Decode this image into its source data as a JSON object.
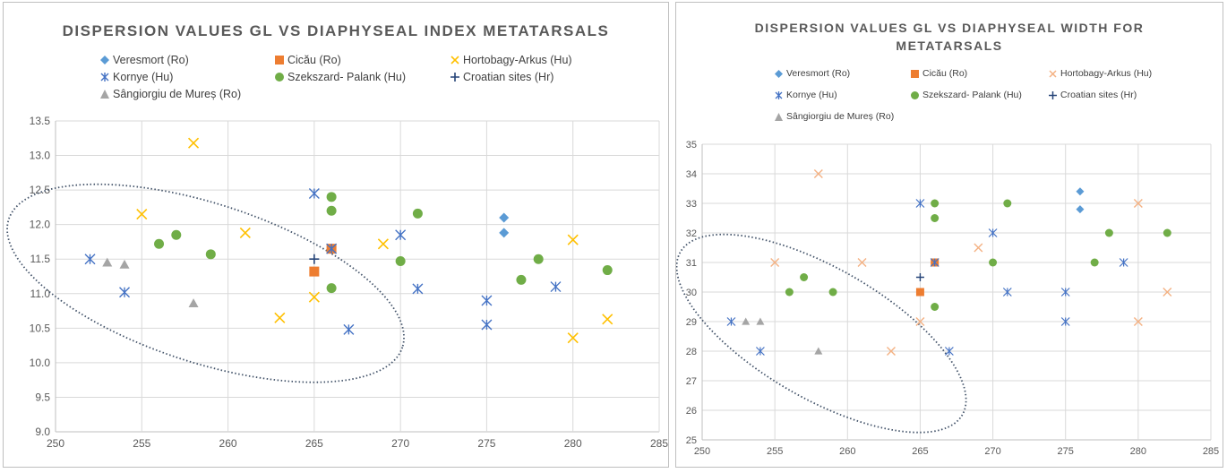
{
  "chart_data": [
    {
      "type": "scatter",
      "title": "DISPERSION VALUES GL VS DIAPHYSEAL INDEX METATARSALS",
      "xlim": [
        250,
        285
      ],
      "ylim": [
        9.0,
        13.5
      ],
      "xticks": [
        "250",
        "255",
        "260",
        "265",
        "270",
        "275",
        "280",
        "285"
      ],
      "yticks": [
        "9.0",
        "9.5",
        "10.0",
        "10.5",
        "11.0",
        "11.5",
        "12.0",
        "12.5",
        "13.0",
        "13.5"
      ],
      "grid": true,
      "legend_position": "top",
      "series": [
        {
          "name": "Veresmort (Ro)",
          "marker": "diamond",
          "color": "#5b9bd5",
          "points": [
            [
              276,
              12.1
            ],
            [
              276,
              11.88
            ]
          ]
        },
        {
          "name": "Cicău (Ro)",
          "marker": "square",
          "color": "#ed7d31",
          "points": [
            [
              265,
              11.32
            ],
            [
              266,
              11.65
            ]
          ]
        },
        {
          "name": "Hortobagy-Arkus (Hu)",
          "marker": "x",
          "color": "#ffc000",
          "points": [
            [
              255,
              12.15
            ],
            [
              258,
              13.18
            ],
            [
              261,
              11.88
            ],
            [
              263,
              10.65
            ],
            [
              265,
              10.95
            ],
            [
              269,
              11.72
            ],
            [
              280,
              11.78
            ],
            [
              280,
              10.36
            ],
            [
              282,
              10.63
            ]
          ]
        },
        {
          "name": "Kornye (Hu)",
          "marker": "asterisk",
          "color": "#4472c4",
          "points": [
            [
              252,
              11.5
            ],
            [
              254,
              11.02
            ],
            [
              265,
              12.45
            ],
            [
              266,
              11.65
            ],
            [
              267,
              10.48
            ],
            [
              270,
              11.85
            ],
            [
              271,
              11.07
            ],
            [
              275,
              10.9
            ],
            [
              275,
              10.55
            ],
            [
              279,
              11.1
            ]
          ]
        },
        {
          "name": "Szekszard- Palank (Hu)",
          "marker": "circle",
          "color": "#70ad47",
          "points": [
            [
              256,
              11.72
            ],
            [
              257,
              11.85
            ],
            [
              259,
              11.57
            ],
            [
              266,
              12.4
            ],
            [
              266,
              12.2
            ],
            [
              266,
              11.08
            ],
            [
              270,
              11.47
            ],
            [
              271,
              12.16
            ],
            [
              277,
              11.2
            ],
            [
              278,
              11.5
            ],
            [
              282,
              11.34
            ]
          ]
        },
        {
          "name": "Croatian sites (Hr)",
          "marker": "plus",
          "color": "#264478",
          "points": [
            [
              265,
              11.5
            ]
          ]
        },
        {
          "name": "Sângiorgiu de Mureș (Ro)",
          "marker": "triangle",
          "color": "#a5a5a5",
          "points": [
            [
              253,
              11.45
            ],
            [
              254,
              11.42
            ],
            [
              258,
              10.86
            ]
          ]
        }
      ],
      "ellipse": {
        "cx": 258.7,
        "cy": 11.15,
        "rx": 12,
        "ry": 1.15,
        "rotation_deg": 18
      }
    },
    {
      "type": "scatter",
      "title": "DISPERSION VALUES GL VS DIAPHYSEAL WIDTH FOR\nMETATARSALS",
      "xlim": [
        250,
        285
      ],
      "ylim": [
        25,
        35
      ],
      "xticks": [
        "250",
        "255",
        "260",
        "265",
        "270",
        "275",
        "280",
        "285"
      ],
      "yticks": [
        "25",
        "26",
        "27",
        "28",
        "29",
        "30",
        "31",
        "32",
        "33",
        "34",
        "35"
      ],
      "grid": true,
      "legend_position": "top",
      "series": [
        {
          "name": "Veresmort (Ro)",
          "marker": "diamond",
          "color": "#5b9bd5",
          "points": [
            [
              276,
              33.4
            ],
            [
              276,
              32.8
            ]
          ]
        },
        {
          "name": "Cicău (Ro)",
          "marker": "square",
          "color": "#ed7d31",
          "points": [
            [
              265,
              30
            ],
            [
              266,
              31
            ]
          ]
        },
        {
          "name": "Hortobagy-Arkus (Hu)",
          "marker": "x",
          "color": "#f4b183",
          "points": [
            [
              255,
              31
            ],
            [
              258,
              34
            ],
            [
              261,
              31
            ],
            [
              263,
              28
            ],
            [
              265,
              29
            ],
            [
              269,
              31.5
            ],
            [
              280,
              33
            ],
            [
              280,
              29
            ],
            [
              282,
              30
            ]
          ]
        },
        {
          "name": "Kornye (Hu)",
          "marker": "asterisk",
          "color": "#4472c4",
          "points": [
            [
              252,
              29
            ],
            [
              254,
              28
            ],
            [
              265,
              33
            ],
            [
              266,
              31
            ],
            [
              267,
              28
            ],
            [
              270,
              32
            ],
            [
              271,
              30
            ],
            [
              275,
              30
            ],
            [
              275,
              29
            ],
            [
              279,
              31
            ]
          ]
        },
        {
          "name": "Szekszard- Palank (Hu)",
          "marker": "circle",
          "color": "#70ad47",
          "points": [
            [
              256,
              30
            ],
            [
              257,
              30.5
            ],
            [
              259,
              30
            ],
            [
              266,
              33
            ],
            [
              266,
              32.5
            ],
            [
              266,
              29.5
            ],
            [
              270,
              31
            ],
            [
              271,
              33
            ],
            [
              277,
              31
            ],
            [
              278,
              32
            ],
            [
              282,
              32
            ]
          ]
        },
        {
          "name": "Croatian sites (Hr)",
          "marker": "plus",
          "color": "#264478",
          "points": [
            [
              265,
              30.5
            ]
          ]
        },
        {
          "name": "Sângiorgiu de Mureș (Ro)",
          "marker": "triangle",
          "color": "#a5a5a5",
          "points": [
            [
              253,
              29
            ],
            [
              254,
              29
            ],
            [
              258,
              28
            ]
          ]
        }
      ],
      "ellipse": {
        "cx": 258.2,
        "cy": 28.6,
        "rx": 11.2,
        "ry": 2.2,
        "rotation_deg": 30
      }
    }
  ]
}
